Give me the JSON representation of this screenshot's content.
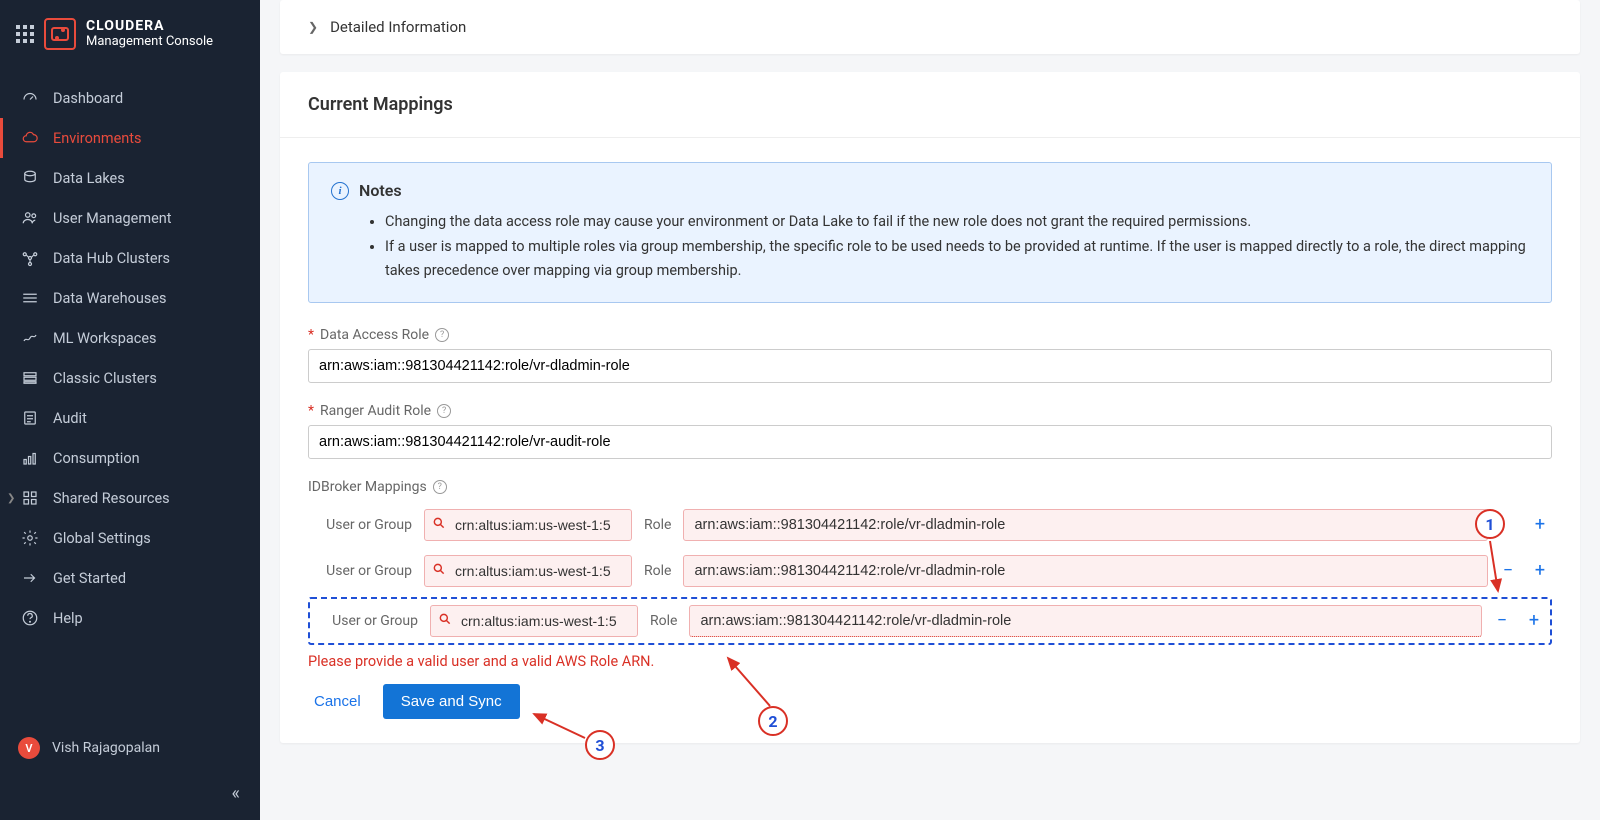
{
  "brand": {
    "top": "CLOUDERA",
    "bottom": "Management Console"
  },
  "sidebar": {
    "items": [
      {
        "label": "Dashboard",
        "icon": "gauge"
      },
      {
        "label": "Environments",
        "icon": "cloud",
        "active": true
      },
      {
        "label": "Data Lakes",
        "icon": "datalake"
      },
      {
        "label": "User Management",
        "icon": "users"
      },
      {
        "label": "Data Hub Clusters",
        "icon": "hub"
      },
      {
        "label": "Data Warehouses",
        "icon": "warehouse"
      },
      {
        "label": "ML Workspaces",
        "icon": "ml"
      },
      {
        "label": "Classic Clusters",
        "icon": "classic"
      },
      {
        "label": "Audit",
        "icon": "audit"
      },
      {
        "label": "Consumption",
        "icon": "consumption"
      },
      {
        "label": "Shared Resources",
        "icon": "shared",
        "chevron": true
      },
      {
        "label": "Global Settings",
        "icon": "gear"
      },
      {
        "label": "Get Started",
        "icon": "arrow"
      },
      {
        "label": "Help",
        "icon": "help"
      }
    ],
    "user": {
      "initial": "V",
      "name": "Vish Rajagopalan"
    }
  },
  "detail": {
    "title": "Detailed Information"
  },
  "mappings": {
    "title": "Current Mappings",
    "notes_title": "Notes",
    "notes": [
      "Changing the data access role may cause your environment or Data Lake to fail if the new role does not grant the required permissions.",
      "If a user is mapped to multiple roles via group membership, the specific role to be used needs to be provided at runtime. If the user is mapped directly to a role, the direct mapping takes precedence over mapping via group membership."
    ],
    "data_access_label": "Data Access Role",
    "data_access_value": "arn:aws:iam::981304421142:role/vr-dladmin-role",
    "ranger_label": "Ranger Audit Role",
    "ranger_value": "arn:aws:iam::981304421142:role/vr-audit-role",
    "idb_label": "IDBroker Mappings",
    "user_or_group": "User or Group",
    "role_col": "Role",
    "rows": [
      {
        "user": "crn:altus:iam:us-west-1:5",
        "role": "arn:aws:iam::981304421142:role/vr-dladmin-role"
      },
      {
        "user": "crn:altus:iam:us-west-1:5",
        "role": "arn:aws:iam::981304421142:role/vr-dladmin-role"
      },
      {
        "user": "crn:altus:iam:us-west-1:5",
        "role": "arn:aws:iam::981304421142:role/vr-dladmin-role"
      }
    ],
    "error": "Please provide a valid user and a valid AWS Role ARN.",
    "cancel": "Cancel",
    "save": "Save and Sync"
  },
  "callouts": {
    "c1": "1",
    "c2": "2",
    "c3": "3"
  }
}
